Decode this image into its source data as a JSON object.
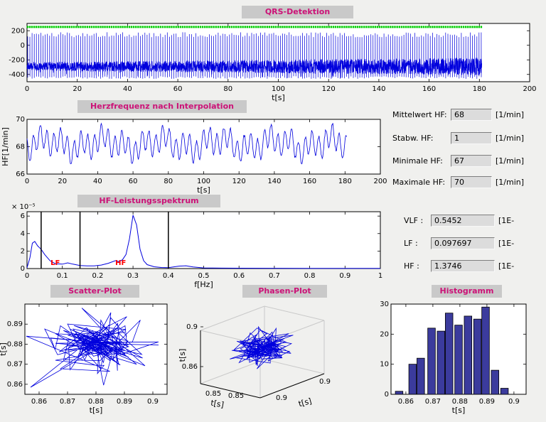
{
  "window": {
    "background": "#f0f0ee"
  },
  "colors": {
    "signal": "#0000dd",
    "qrs_marker": "#00cc00",
    "title_text": "#cc1277",
    "titlebar_bg": "#c9c9c9",
    "bar_fill": "#3b3b9d",
    "band_label": "#ff0000",
    "plot_bg": "#ffffff"
  },
  "panels": {
    "qrs": {
      "title": "QRS-Detektion"
    },
    "hr": {
      "title": "Herzfrequenz nach Interpolation"
    },
    "spectrum": {
      "title": "HF-Leistungsspektrum"
    },
    "scatter": {
      "title": "Scatter-Plot"
    },
    "phase": {
      "title": "Phasen-Plot"
    },
    "hist": {
      "title": "Histogramm"
    }
  },
  "stats": {
    "rows": [
      {
        "label": "Mittelwert HF:",
        "value": "68",
        "unit": "[1/min]"
      },
      {
        "label": "Stabw. HF:",
        "value": "1",
        "unit": "[1/min]"
      },
      {
        "label": "Minimale HF:",
        "value": "67",
        "unit": "[1/min]"
      },
      {
        "label": "Maximale HF:",
        "value": "70",
        "unit": "[1/min]"
      }
    ]
  },
  "bands": {
    "rows": [
      {
        "label": "VLF :",
        "value": "0.5452",
        "unit": "[1E-"
      },
      {
        "label": "LF :",
        "value": "0.097697",
        "unit": "[1E-"
      },
      {
        "label": "HF :",
        "value": "1.3746",
        "unit": "[1E-"
      }
    ]
  },
  "chart_data": [
    {
      "id": "qrs",
      "type": "ecg",
      "title": "QRS-Detektion",
      "xlabel": "t[s]",
      "xlim": [
        0,
        200
      ],
      "ylim": [
        -500,
        300
      ],
      "xticks": [
        0,
        20,
        40,
        60,
        80,
        100,
        120,
        140,
        160,
        180,
        200
      ],
      "yticks": [
        200,
        0,
        -200,
        -400
      ],
      "signal": {
        "duration": 181,
        "beat_period_s": 0.88,
        "baseline": -290,
        "noise_amp_start": 60,
        "noise_amp_end": 120,
        "spike_high": 180,
        "spike_low": -460,
        "marker_y": 252,
        "seed": 3
      }
    },
    {
      "id": "hr",
      "type": "line",
      "title": "Herzfrequenz nach Interpolation",
      "xlabel": "t[s]",
      "ylabel": "HF[1/min]",
      "xlim": [
        0,
        200
      ],
      "ylim": [
        66,
        70
      ],
      "xticks": [
        0,
        20,
        40,
        60,
        80,
        100,
        120,
        140,
        160,
        180,
        200
      ],
      "yticks": [
        66,
        68,
        70
      ],
      "signal": {
        "duration": 181,
        "mean": 68.2,
        "components": [
          [
            0.26,
            0.8
          ],
          [
            0.085,
            0.4
          ],
          [
            0.031,
            0.3
          ]
        ],
        "noise": 0.12,
        "seed": 5
      }
    },
    {
      "id": "spectrum",
      "type": "spectrum",
      "title": "HF-Leistungsspektrum",
      "xlabel": "f[Hz]",
      "exp_label": "× 10⁻⁵",
      "xlim": [
        0,
        1
      ],
      "ylim": [
        0,
        6.5
      ],
      "xticks": [
        0,
        0.1,
        0.2,
        0.3,
        0.4,
        0.5,
        0.6,
        0.7,
        0.8,
        0.9,
        1
      ],
      "yticks": [
        0,
        2,
        4,
        6
      ],
      "points_e5": [
        [
          0,
          0.1
        ],
        [
          0.008,
          1.2
        ],
        [
          0.015,
          2.9
        ],
        [
          0.022,
          3.1
        ],
        [
          0.03,
          2.6
        ],
        [
          0.04,
          2.2
        ],
        [
          0.05,
          1.6
        ],
        [
          0.065,
          0.9
        ],
        [
          0.08,
          0.55
        ],
        [
          0.1,
          0.5
        ],
        [
          0.115,
          0.65
        ],
        [
          0.13,
          0.5
        ],
        [
          0.15,
          0.35
        ],
        [
          0.17,
          0.3
        ],
        [
          0.19,
          0.3
        ],
        [
          0.21,
          0.4
        ],
        [
          0.23,
          0.6
        ],
        [
          0.25,
          0.9
        ],
        [
          0.26,
          0.8
        ],
        [
          0.27,
          1.0
        ],
        [
          0.28,
          1.6
        ],
        [
          0.29,
          3.4
        ],
        [
          0.3,
          6.1
        ],
        [
          0.31,
          5.0
        ],
        [
          0.32,
          2.2
        ],
        [
          0.33,
          0.9
        ],
        [
          0.34,
          0.45
        ],
        [
          0.36,
          0.2
        ],
        [
          0.38,
          0.12
        ],
        [
          0.4,
          0.1
        ],
        [
          0.43,
          0.28
        ],
        [
          0.45,
          0.32
        ],
        [
          0.47,
          0.18
        ],
        [
          0.5,
          0.07
        ],
        [
          0.55,
          0.05
        ],
        [
          0.6,
          0.04
        ],
        [
          0.7,
          0.03
        ],
        [
          0.8,
          0.02
        ],
        [
          0.9,
          0.02
        ],
        [
          1,
          0.02
        ]
      ],
      "vlines": [
        0.04,
        0.15,
        0.4
      ],
      "band_labels": [
        {
          "text": "LF",
          "x": 0.08
        },
        {
          "text": "HF",
          "x": 0.265
        }
      ]
    },
    {
      "id": "scatter",
      "type": "scatter-line",
      "title": "Scatter-Plot",
      "xlabel": "t[s]",
      "ylabel": "t[s]",
      "xlim": [
        0.855,
        0.905
      ],
      "ylim": [
        0.855,
        0.9
      ],
      "xticks": [
        0.86,
        0.87,
        0.88,
        0.89,
        0.9
      ],
      "yticks": [
        0.86,
        0.87,
        0.88,
        0.89
      ],
      "cloud": {
        "n": 160,
        "cx": 0.8815,
        "cy": 0.88,
        "sx": 0.0075,
        "sy": 0.0065,
        "seed": 7
      },
      "extra_points": [
        [
          0.857,
          0.8585
        ],
        [
          0.8555,
          0.884
        ]
      ]
    },
    {
      "id": "phase",
      "type": "phase3d",
      "title": "Phasen-Plot",
      "xlabel": "t[s]",
      "ylabel": "t[s]",
      "zlabel": "t[s]",
      "zticks": [
        0.9,
        0.86
      ],
      "floor_ticks": [
        0.85,
        0.85,
        0.9,
        0.9
      ],
      "cloud": {
        "n": 150,
        "seed": 11
      }
    },
    {
      "id": "hist",
      "type": "bar",
      "title": "Histogramm",
      "xlabel": "t[s]",
      "xlim": [
        0.8545,
        0.9045
      ],
      "ylim": [
        0,
        30
      ],
      "xticks": [
        0.86,
        0.87,
        0.88,
        0.89,
        0.9
      ],
      "yticks": [
        0,
        10,
        20,
        30
      ],
      "bar_width": 0.0028,
      "centers": [
        0.8575,
        0.8625,
        0.8655,
        0.8695,
        0.873,
        0.876,
        0.8795,
        0.883,
        0.8865,
        0.8895,
        0.893,
        0.8965
      ],
      "values": [
        1,
        10,
        12,
        22,
        21,
        27,
        23,
        26,
        25,
        29,
        8,
        2
      ]
    }
  ]
}
